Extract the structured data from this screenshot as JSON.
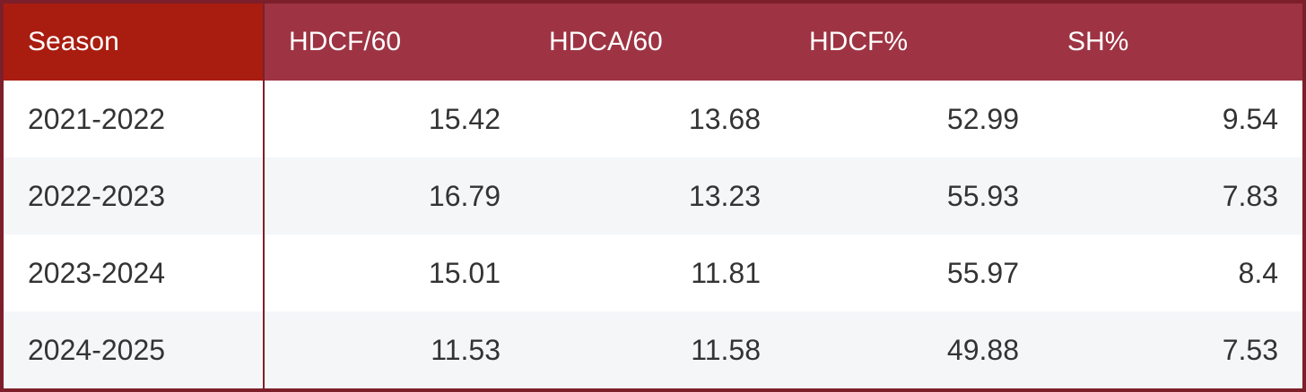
{
  "table": {
    "columns": [
      "Season",
      "HDCF/60",
      "HDCA/60",
      "HDCF%",
      "SH%"
    ],
    "rows": [
      [
        "2021-2022",
        15.42,
        13.68,
        52.99,
        9.54
      ],
      [
        "2022-2023",
        16.79,
        13.23,
        55.93,
        7.83
      ],
      [
        "2023-2024",
        15.01,
        11.81,
        55.97,
        8.4
      ],
      [
        "2024-2025",
        11.53,
        11.58,
        49.88,
        7.53
      ]
    ]
  }
}
